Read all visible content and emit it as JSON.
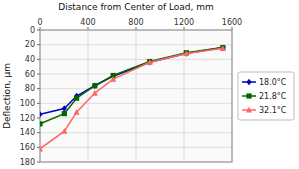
{
  "chart_data": {
    "type": "line",
    "title": "Distance from Center of Load, mm",
    "ylabel": "Deflection, μm",
    "x": [
      0,
      203,
      305,
      457,
      610,
      914,
      1219,
      1524
    ],
    "xlim": [
      0,
      1600
    ],
    "ylim": [
      180,
      0
    ],
    "xticks": [
      0,
      400,
      800,
      1200,
      1600
    ],
    "yticks": [
      0,
      20,
      40,
      60,
      80,
      100,
      120,
      140,
      160,
      180
    ],
    "grid": true,
    "legend": "right",
    "series": [
      {
        "name": "18.0°C",
        "color": "#0000BB",
        "marker": "diamond",
        "values": [
          115,
          107,
          90,
          76,
          63,
          44,
          32,
          24
        ]
      },
      {
        "name": "21.8°C",
        "color": "#006600",
        "marker": "square",
        "values": [
          128,
          114,
          93,
          76,
          62,
          43,
          31,
          24
        ]
      },
      {
        "name": "32.1°C",
        "color": "#FF6666",
        "marker": "triangle",
        "values": [
          162,
          138,
          112,
          86,
          67,
          44,
          32,
          25
        ]
      }
    ]
  }
}
